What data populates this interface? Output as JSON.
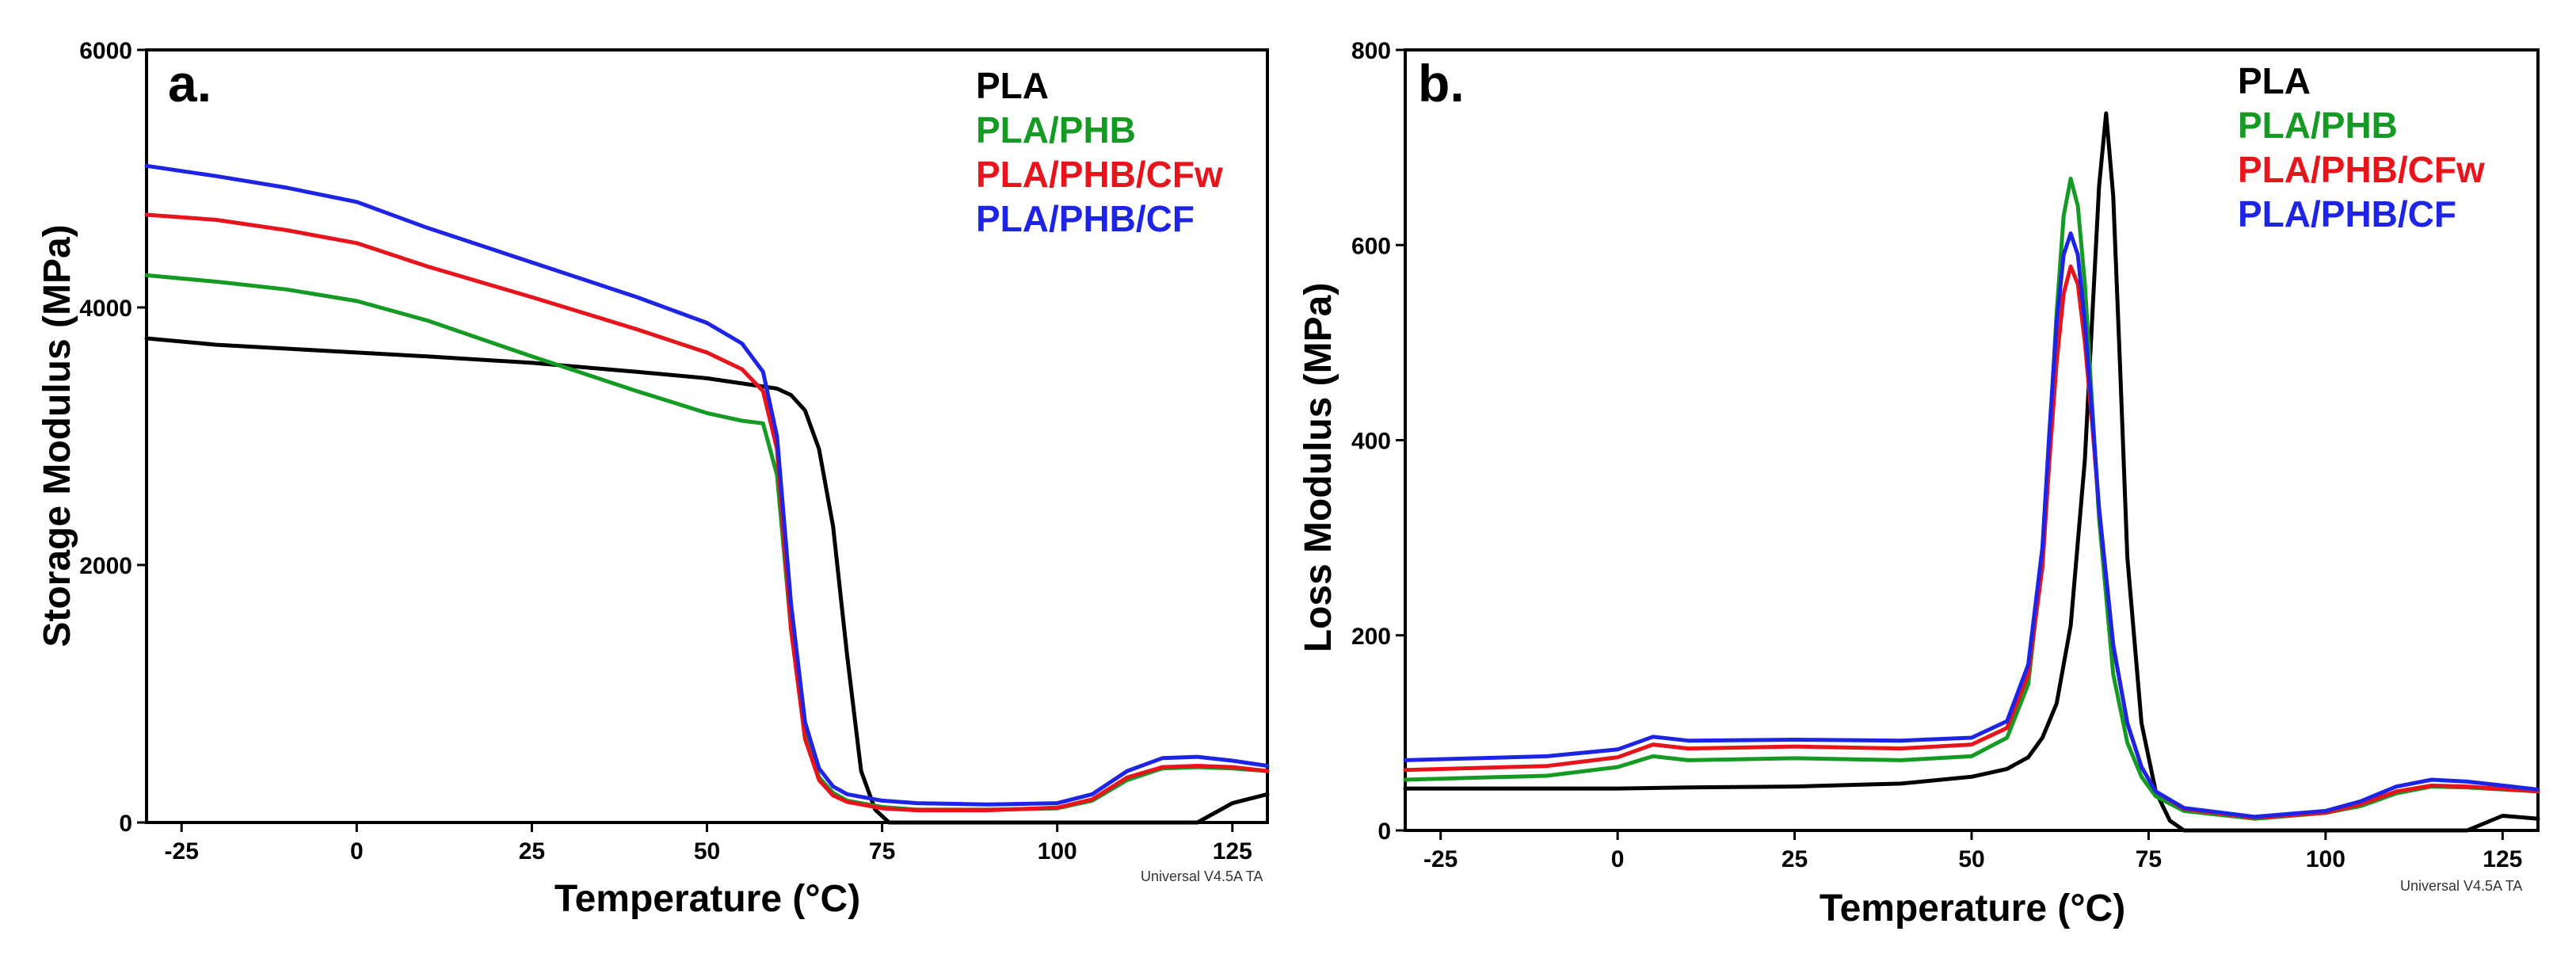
{
  "chart_data": [
    {
      "type": "line",
      "panel_label": "a.",
      "xlabel": "Temperature (°C)",
      "ylabel": "Storage Modulus (MPa)",
      "xlim": [
        -30,
        130
      ],
      "ylim": [
        0,
        6000
      ],
      "xticks": [
        -25,
        0,
        25,
        50,
        75,
        100,
        125
      ],
      "xtick_labels": [
        "-25",
        "0",
        "25",
        "50",
        "75",
        "100",
        "125"
      ],
      "yticks": [
        0,
        2000,
        4000,
        6000
      ],
      "ytick_labels": [
        "0",
        "2000",
        "4000",
        "6000"
      ],
      "legend_position": "top-right",
      "watermark": "Universal V4.5A TA",
      "series": [
        {
          "name": "PLA",
          "color": "#000000",
          "x": [
            -30,
            -20,
            -10,
            0,
            10,
            25,
            40,
            50,
            55,
            60,
            62,
            64,
            66,
            68,
            70,
            72,
            74,
            76,
            80,
            90,
            100,
            110,
            115,
            120,
            125,
            130
          ],
          "y": [
            3760,
            3710,
            3680,
            3650,
            3620,
            3570,
            3500,
            3450,
            3410,
            3370,
            3320,
            3200,
            2900,
            2300,
            1300,
            400,
            100,
            0,
            0,
            0,
            0,
            0,
            0,
            0,
            150,
            220
          ]
        },
        {
          "name": "PLA/PHB",
          "color": "#159A24",
          "x": [
            -30,
            -20,
            -10,
            0,
            10,
            25,
            40,
            50,
            55,
            58,
            60,
            62,
            64,
            66,
            68,
            70,
            75,
            80,
            90,
            100,
            105,
            110,
            115,
            120,
            125,
            130
          ],
          "y": [
            4250,
            4200,
            4140,
            4050,
            3900,
            3620,
            3350,
            3180,
            3120,
            3100,
            2700,
            1500,
            700,
            350,
            230,
            170,
            120,
            100,
            100,
            110,
            170,
            330,
            420,
            430,
            420,
            400
          ]
        },
        {
          "name": "PLA/PHB/CFw",
          "color": "#E8141C",
          "x": [
            -30,
            -20,
            -10,
            0,
            10,
            25,
            40,
            50,
            55,
            58,
            60,
            62,
            64,
            66,
            68,
            70,
            75,
            80,
            90,
            100,
            105,
            110,
            115,
            120,
            125,
            130
          ],
          "y": [
            4720,
            4680,
            4600,
            4500,
            4320,
            4080,
            3830,
            3650,
            3520,
            3350,
            2900,
            1500,
            650,
            330,
            210,
            160,
            110,
            95,
            95,
            115,
            180,
            350,
            430,
            440,
            430,
            400
          ]
        },
        {
          "name": "PLA/PHB/CF",
          "color": "#1E24E6",
          "x": [
            -30,
            -20,
            -10,
            0,
            10,
            25,
            40,
            50,
            55,
            58,
            60,
            62,
            64,
            66,
            68,
            70,
            75,
            80,
            90,
            100,
            105,
            110,
            115,
            120,
            125,
            130
          ],
          "y": [
            5100,
            5020,
            4930,
            4820,
            4620,
            4350,
            4080,
            3880,
            3720,
            3500,
            3000,
            1700,
            780,
            420,
            280,
            220,
            170,
            150,
            140,
            150,
            220,
            400,
            500,
            510,
            480,
            440
          ]
        }
      ]
    },
    {
      "type": "line",
      "panel_label": "b.",
      "xlabel": "Temperature (°C)",
      "ylabel": "Loss Modulus (MPa)",
      "xlim": [
        -30,
        130
      ],
      "ylim": [
        0,
        800
      ],
      "xticks": [
        -25,
        0,
        25,
        50,
        75,
        100,
        125
      ],
      "xtick_labels": [
        "-25",
        "0",
        "25",
        "50",
        "75",
        "100",
        "125"
      ],
      "yticks": [
        0,
        200,
        400,
        600,
        800
      ],
      "ytick_labels": [
        "0",
        "200",
        "400",
        "600",
        "800"
      ],
      "legend_position": "top-right",
      "watermark": "Universal V4.5A TA",
      "series": [
        {
          "name": "PLA",
          "color": "#000000",
          "x": [
            -30,
            -10,
            0,
            10,
            25,
            40,
            50,
            55,
            58,
            60,
            62,
            64,
            66,
            67,
            68,
            69,
            70,
            71,
            72,
            74,
            76,
            78,
            80,
            85,
            90,
            100,
            110,
            115,
            120,
            125,
            130
          ],
          "y": [
            43,
            43,
            43,
            44,
            45,
            48,
            55,
            63,
            75,
            95,
            130,
            210,
            380,
            520,
            660,
            735,
            650,
            470,
            280,
            110,
            40,
            10,
            0,
            0,
            0,
            0,
            0,
            0,
            0,
            15,
            12
          ]
        },
        {
          "name": "PLA/PHB",
          "color": "#159A24",
          "x": [
            -30,
            -10,
            0,
            5,
            10,
            25,
            40,
            50,
            55,
            58,
            60,
            61,
            62,
            63,
            64,
            65,
            66,
            67,
            68,
            70,
            72,
            74,
            76,
            80,
            90,
            100,
            105,
            110,
            115,
            120,
            130
          ],
          "y": [
            52,
            56,
            65,
            76,
            72,
            74,
            72,
            76,
            95,
            150,
            280,
            400,
            530,
            630,
            668,
            640,
            560,
            440,
            320,
            160,
            90,
            55,
            35,
            20,
            12,
            18,
            25,
            38,
            45,
            44,
            40
          ]
        },
        {
          "name": "PLA/PHB/CFw",
          "color": "#E8141C",
          "x": [
            -30,
            -10,
            0,
            5,
            10,
            25,
            40,
            50,
            55,
            58,
            60,
            61,
            62,
            63,
            64,
            65,
            66,
            67,
            68,
            70,
            72,
            74,
            76,
            80,
            90,
            100,
            105,
            110,
            115,
            120,
            130
          ],
          "y": [
            62,
            66,
            75,
            88,
            84,
            86,
            84,
            88,
            105,
            160,
            270,
            380,
            480,
            550,
            578,
            560,
            500,
            420,
            330,
            190,
            110,
            65,
            40,
            22,
            13,
            18,
            27,
            40,
            46,
            45,
            40
          ]
        },
        {
          "name": "PLA/PHB/CF",
          "color": "#1E24E6",
          "x": [
            -30,
            -10,
            0,
            5,
            10,
            25,
            40,
            50,
            55,
            58,
            60,
            61,
            62,
            63,
            64,
            65,
            66,
            67,
            68,
            70,
            72,
            74,
            76,
            80,
            90,
            100,
            105,
            110,
            115,
            120,
            130
          ],
          "y": [
            72,
            76,
            83,
            96,
            92,
            93,
            92,
            95,
            112,
            170,
            290,
            410,
            520,
            590,
            612,
            590,
            520,
            430,
            330,
            190,
            110,
            65,
            40,
            23,
            14,
            20,
            30,
            45,
            52,
            50,
            42
          ]
        }
      ]
    }
  ]
}
